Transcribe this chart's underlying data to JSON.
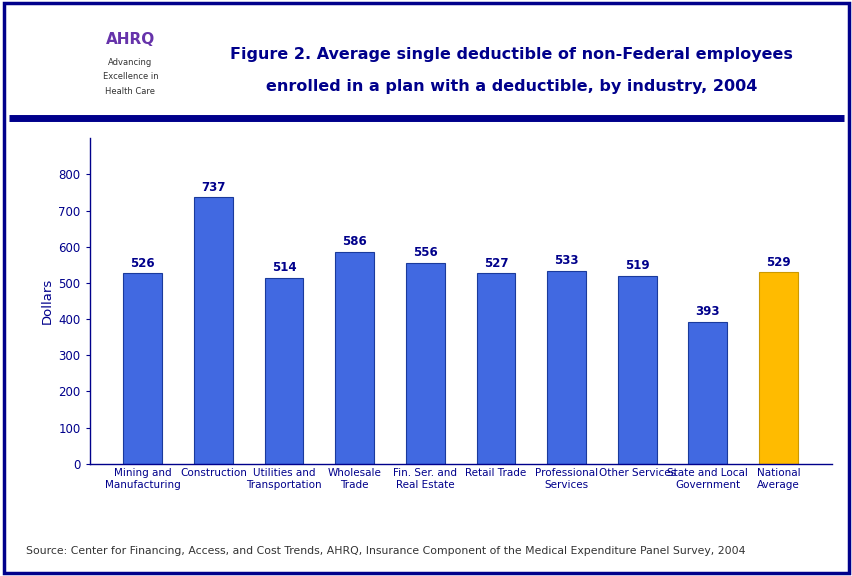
{
  "categories": [
    "Mining and\nManufacturing",
    "Construction",
    "Utilities and\nTransportation",
    "Wholesale\nTrade",
    "Fin. Ser. and\nReal Estate",
    "Retail Trade",
    "Professional\nServices",
    "Other Services",
    "State and Local\nGovernment",
    "National\nAverage"
  ],
  "values": [
    526,
    737,
    514,
    586,
    556,
    527,
    533,
    519,
    393,
    529
  ],
  "bar_colors": [
    "#4169e1",
    "#4169e1",
    "#4169e1",
    "#4169e1",
    "#4169e1",
    "#4169e1",
    "#4169e1",
    "#4169e1",
    "#4169e1",
    "#ffbb00"
  ],
  "bar_edge_colors": [
    "#1a3a9c",
    "#1a3a9c",
    "#1a3a9c",
    "#1a3a9c",
    "#1a3a9c",
    "#1a3a9c",
    "#1a3a9c",
    "#1a3a9c",
    "#1a3a9c",
    "#cc9900"
  ],
  "title_line1": "Figure 2. Average single deductible of non-Federal employees",
  "title_line2": "enrolled in a plan with a deductible, by industry, 2004",
  "ylabel": "Dollars",
  "ylim": [
    0,
    900
  ],
  "yticks": [
    0,
    100,
    200,
    300,
    400,
    500,
    600,
    700,
    800
  ],
  "source_text": "Source: Center for Financing, Access, and Cost Trends, AHRQ, Insurance Component of the Medical Expenditure Panel Survey, 2004",
  "background_color": "#ffffff",
  "title_color": "#00008b",
  "label_color": "#00008b",
  "value_label_color": "#00008b",
  "axis_color": "#00008b",
  "header_bar_color": "#00008b",
  "outer_border_color": "#00008b",
  "figure_bg": "#ffffff",
  "header_bg": "#ffffff",
  "logo_box_bg": "#3399cc",
  "logo_text_bg": "#ffffff"
}
